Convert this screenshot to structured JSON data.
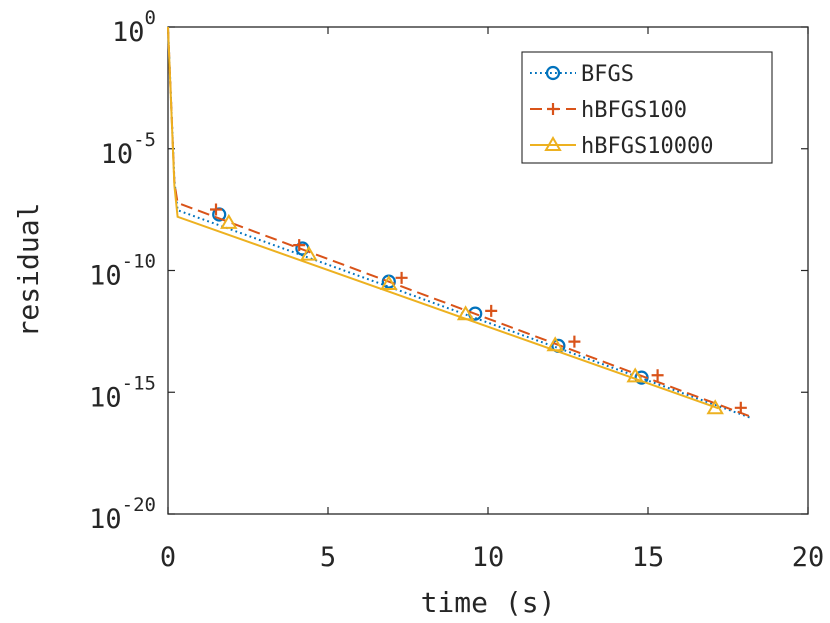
{
  "chart_data": {
    "type": "line",
    "title": "",
    "xlabel": "time (s)",
    "ylabel": "residual",
    "xlim": [
      0,
      20
    ],
    "ylim": [
      1e-20,
      1
    ],
    "yscale": "log",
    "grid": false,
    "legend_position": "top-right",
    "x_ticks": [
      {
        "value": 0,
        "label": "0"
      },
      {
        "value": 5,
        "label": "5"
      },
      {
        "value": 10,
        "label": "10"
      },
      {
        "value": 15,
        "label": "15"
      },
      {
        "value": 20,
        "label": "20"
      }
    ],
    "y_ticks": [
      {
        "value": 1.0,
        "base": "10",
        "exp": "0"
      },
      {
        "value": 1e-05,
        "base": "10",
        "exp": "-5"
      },
      {
        "value": 1e-10,
        "base": "10",
        "exp": "-10"
      },
      {
        "value": 1e-15,
        "base": "10",
        "exp": "-15"
      },
      {
        "value": 1e-20,
        "base": "10",
        "exp": "-20"
      }
    ],
    "series": [
      {
        "name": "BFGS",
        "color": "#0072BD",
        "line_style": "dotted",
        "marker": "circle",
        "points": [
          [
            0.0,
            1.0
          ],
          [
            0.2,
            5e-07
          ],
          [
            0.3,
            3e-08
          ],
          [
            18.2,
            9e-17
          ]
        ],
        "markers": [
          [
            1.6,
            2e-08
          ],
          [
            4.2,
            8e-10
          ],
          [
            6.9,
            3.5e-11
          ],
          [
            9.6,
            1.7e-12
          ],
          [
            12.2,
            8e-14
          ],
          [
            14.8,
            4e-15
          ]
        ]
      },
      {
        "name": "hBFGS100",
        "color": "#D95319",
        "line_style": "dashed",
        "marker": "plus",
        "points": [
          [
            0.0,
            1.0
          ],
          [
            0.2,
            4e-07
          ],
          [
            0.3,
            6e-08
          ],
          [
            18.3,
            9e-17
          ]
        ],
        "markers": [
          [
            1.5,
            3.2e-08
          ],
          [
            4.1,
            1.1e-09
          ],
          [
            7.3,
            5e-11
          ],
          [
            10.1,
            2.2e-12
          ],
          [
            12.7,
            1.2e-13
          ],
          [
            15.3,
            5e-15
          ],
          [
            17.9,
            2.3e-16
          ]
        ]
      },
      {
        "name": "hBFGS10000",
        "color": "#EDB120",
        "line_style": "solid",
        "marker": "triangle",
        "points": [
          [
            0.0,
            1.0
          ],
          [
            0.2,
            3e-07
          ],
          [
            0.3,
            1.6e-08
          ],
          [
            17.2,
            2.2e-16
          ]
        ],
        "markers": [
          [
            1.9,
            9e-09
          ],
          [
            4.4,
            4.5e-10
          ],
          [
            6.9,
            2.8e-11
          ],
          [
            9.3,
            1.6e-12
          ],
          [
            12.1,
            8.5e-14
          ],
          [
            14.6,
            4.5e-15
          ],
          [
            17.1,
            2.2e-16
          ]
        ]
      }
    ]
  }
}
